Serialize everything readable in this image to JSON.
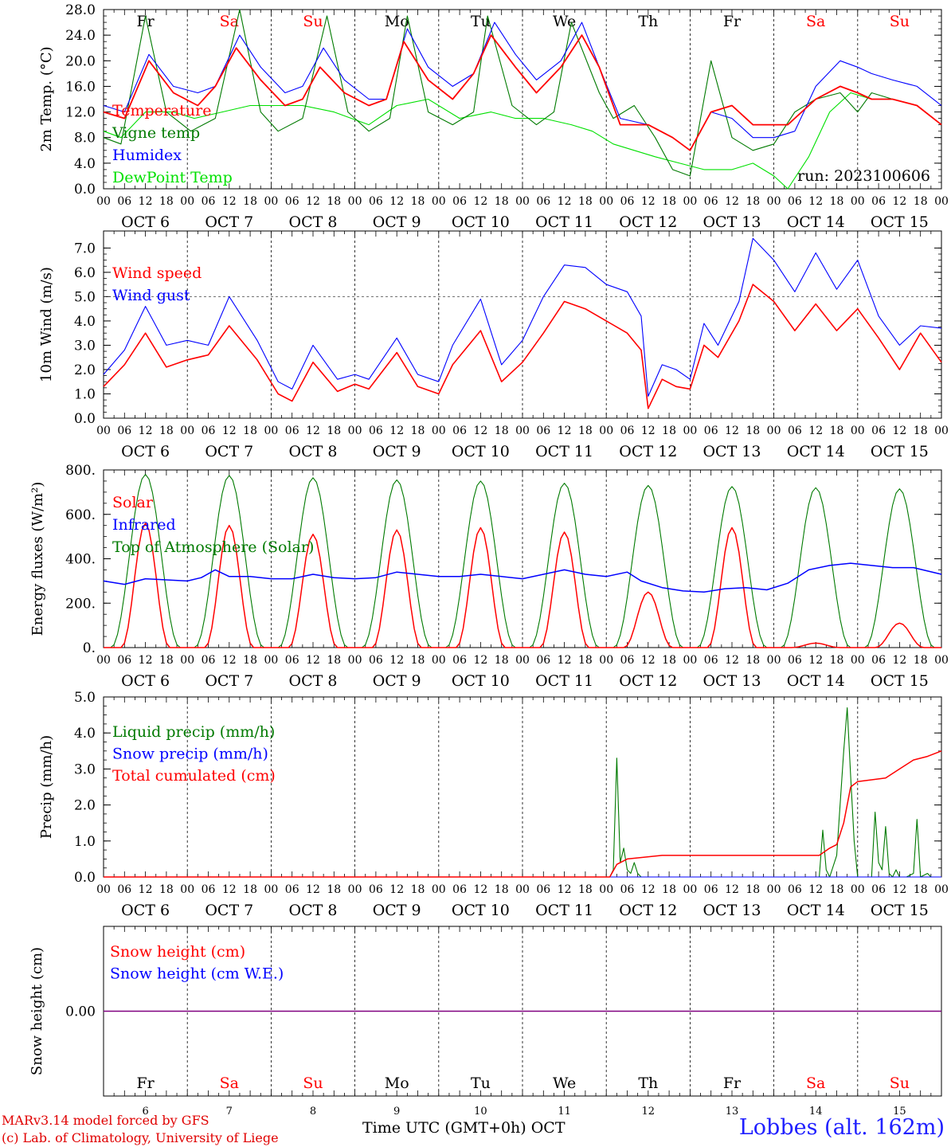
{
  "days": {
    "dow": [
      "Fr",
      "Sa",
      "Su",
      "Mo",
      "Tu",
      "We",
      "Th",
      "Fr",
      "Sa",
      "Su"
    ],
    "dom": [
      "6",
      "7",
      "8",
      "9",
      "10",
      "11",
      "12",
      "13",
      "14",
      "15"
    ],
    "month": "OCT",
    "dates": [
      "OCT  6",
      "OCT  7",
      "OCT  8",
      "OCT  9",
      "OCT 10",
      "OCT 11",
      "OCT 12",
      "OCT 13",
      "OCT 14",
      "OCT 15"
    ],
    "weekend_days": [
      "Sa",
      "Su"
    ],
    "hour_labels": [
      "00",
      "06",
      "12",
      "18"
    ],
    "final_hour_label": "00"
  },
  "colors": {
    "red": "#ff0000",
    "blue": "#0000ff",
    "green": "#007a00",
    "lightgreen": "#00e000",
    "purple": "#800080",
    "station": "#2020ff"
  },
  "footer": {
    "model": "MARv3.14 model forced by GFS",
    "lab": "(c) Lab. of Climatology, University of Liege",
    "time_label": "Time UTC (GMT+0h) OCT",
    "station": "Lobbes (alt. 162m)"
  },
  "chart_data": [
    {
      "type": "line",
      "ylabel": "2m Temp. (°C)",
      "ylim": [
        0,
        28
      ],
      "yticks": [
        "0.0",
        "4.0",
        "8.0",
        "12.0",
        "16.0",
        "20.0",
        "24.0",
        "28.0"
      ],
      "annotation": "run: 2023100606",
      "x_unit": "hours from Oct 6 00 UTC",
      "series": [
        {
          "name": "Temperature",
          "color": "red",
          "x": [
            0,
            6,
            13,
            20,
            27,
            32,
            38,
            45,
            52,
            57,
            62,
            69,
            76,
            81,
            86,
            93,
            100,
            106,
            111,
            118,
            124,
            131,
            137,
            142,
            148,
            156,
            163,
            168,
            174,
            180,
            186,
            190,
            196,
            204,
            211,
            216,
            220,
            226,
            233,
            240
          ],
          "y": [
            12,
            11,
            20,
            15,
            13,
            16,
            22,
            17,
            13,
            14,
            19,
            15,
            13,
            14,
            23,
            17,
            14,
            18,
            24,
            19,
            15,
            19,
            24,
            19,
            10,
            10,
            8,
            6,
            12,
            13,
            10,
            10,
            10,
            14,
            16,
            15,
            14,
            14,
            13,
            10
          ]
        },
        {
          "name": "Vigne temp",
          "color": "green",
          "x": [
            0,
            5,
            12,
            18,
            25,
            32,
            39,
            45,
            50,
            57,
            64,
            70,
            76,
            82,
            87,
            93,
            100,
            106,
            110,
            117,
            124,
            129,
            134,
            142,
            146,
            152,
            158,
            163,
            168,
            174,
            180,
            186,
            192,
            198,
            204,
            211,
            216,
            220,
            226,
            233,
            240
          ],
          "y": [
            8,
            7,
            27,
            12,
            9,
            11,
            28,
            12,
            9,
            11,
            27,
            12,
            9,
            11,
            27,
            12,
            10,
            12,
            27,
            13,
            10,
            12,
            26,
            15,
            11,
            13,
            8,
            3,
            2,
            20,
            8,
            6,
            7,
            12,
            14,
            15,
            12,
            15,
            14,
            13,
            10
          ]
        },
        {
          "name": "Humidex",
          "color": "blue",
          "x": [
            0,
            6,
            13,
            20,
            27,
            32,
            39,
            45,
            52,
            57,
            63,
            69,
            76,
            81,
            87,
            93,
            100,
            106,
            112,
            118,
            124,
            131,
            137,
            142,
            148,
            156,
            163,
            168,
            174,
            180,
            186,
            192,
            198,
            204,
            211,
            216,
            220,
            226,
            233,
            240
          ],
          "y": [
            13,
            12,
            21,
            16,
            15,
            16,
            24,
            19,
            15,
            16,
            22,
            17,
            14,
            14,
            25,
            19,
            16,
            18,
            26,
            21,
            17,
            20,
            26,
            19,
            11,
            10,
            8,
            6,
            12,
            11,
            8,
            8,
            9,
            16,
            20,
            19,
            18,
            17,
            16,
            13
          ]
        },
        {
          "name": "DewPoint Temp",
          "color": "lightgreen",
          "x": [
            0,
            5,
            12,
            20,
            26,
            34,
            42,
            50,
            57,
            66,
            76,
            84,
            93,
            102,
            111,
            118,
            126,
            134,
            140,
            146,
            152,
            158,
            165,
            172,
            180,
            186,
            192,
            196,
            202,
            208,
            214,
            220,
            226,
            233,
            240
          ],
          "y": [
            9,
            8,
            12,
            12,
            11,
            12,
            13,
            13,
            13,
            12,
            10,
            13,
            14,
            11,
            12,
            11,
            11,
            10,
            9,
            7,
            6,
            5,
            4,
            3,
            3,
            4,
            2,
            0,
            5,
            12,
            15,
            14,
            14,
            13,
            10
          ]
        }
      ]
    },
    {
      "type": "line",
      "ylabel": "10m Wind (m/s)",
      "ylim": [
        0,
        7.7
      ],
      "yticks": [
        "0.0",
        "1.0",
        "2.0",
        "3.0",
        "4.0",
        "5.0",
        "6.0",
        "7.0"
      ],
      "reference_line": 5.0,
      "series": [
        {
          "name": "Wind speed",
          "color": "red",
          "x": [
            0,
            6,
            12,
            18,
            24,
            30,
            36,
            44,
            50,
            54,
            60,
            67,
            72,
            76,
            84,
            90,
            96,
            100,
            108,
            114,
            120,
            126,
            132,
            138,
            144,
            150,
            154,
            156,
            160,
            164,
            168,
            172,
            176,
            182,
            186,
            192,
            198,
            204,
            210,
            216,
            222,
            228,
            234,
            240
          ],
          "y": [
            1.3,
            2.2,
            3.5,
            2.1,
            2.4,
            2.6,
            3.8,
            2.4,
            1.0,
            0.7,
            2.3,
            1.1,
            1.4,
            1.2,
            2.7,
            1.3,
            1.0,
            2.2,
            3.6,
            1.5,
            2.3,
            3.5,
            4.8,
            4.5,
            4.0,
            3.5,
            2.8,
            0.4,
            1.6,
            1.3,
            1.2,
            3.0,
            2.5,
            4.0,
            5.5,
            4.8,
            3.6,
            4.7,
            3.6,
            4.5,
            3.3,
            2.0,
            3.5,
            2.3
          ]
        },
        {
          "name": "Wind gust",
          "color": "blue",
          "x": [
            0,
            6,
            12,
            18,
            24,
            30,
            36,
            44,
            50,
            54,
            60,
            67,
            72,
            76,
            84,
            90,
            96,
            100,
            108,
            114,
            120,
            126,
            132,
            138,
            144,
            150,
            154,
            156,
            160,
            164,
            168,
            172,
            176,
            182,
            186,
            192,
            198,
            204,
            210,
            216,
            222,
            228,
            234,
            240
          ],
          "y": [
            1.8,
            2.8,
            4.6,
            3.0,
            3.2,
            3.0,
            5.0,
            3.2,
            1.5,
            1.2,
            3.0,
            1.6,
            1.8,
            1.6,
            3.3,
            1.8,
            1.5,
            3.0,
            4.9,
            2.2,
            3.2,
            5.0,
            6.3,
            6.2,
            5.5,
            5.2,
            4.2,
            0.9,
            2.2,
            2.0,
            1.6,
            3.9,
            3.0,
            4.8,
            7.4,
            6.5,
            5.2,
            6.8,
            5.3,
            6.5,
            4.2,
            3.0,
            3.8,
            3.7
          ]
        }
      ]
    },
    {
      "type": "line",
      "ylabel": "Energy fluxes (W/m²)",
      "ylim": [
        0,
        800
      ],
      "yticks": [
        "0.",
        "200.",
        "400.",
        "600.",
        "800."
      ],
      "series": [
        {
          "name": "Solar",
          "color": "red",
          "diurnal_peaks": [
            560,
            550,
            510,
            530,
            540,
            520,
            250,
            540,
            20,
            110
          ]
        },
        {
          "name": "Infrared",
          "color": "blue",
          "x": [
            0,
            6,
            12,
            18,
            24,
            28,
            32,
            36,
            42,
            48,
            54,
            60,
            66,
            72,
            78,
            84,
            90,
            96,
            102,
            108,
            114,
            120,
            126,
            132,
            138,
            144,
            150,
            154,
            160,
            166,
            172,
            178,
            184,
            190,
            196,
            202,
            208,
            214,
            220,
            226,
            232,
            240
          ],
          "y": [
            300,
            285,
            310,
            305,
            300,
            315,
            350,
            320,
            320,
            310,
            310,
            330,
            315,
            310,
            315,
            340,
            330,
            320,
            320,
            330,
            320,
            310,
            330,
            350,
            330,
            320,
            340,
            300,
            270,
            255,
            250,
            265,
            270,
            260,
            290,
            350,
            370,
            380,
            370,
            360,
            360,
            330
          ]
        },
        {
          "name": "Top of Atmosphere (Solar)",
          "color": "green",
          "diurnal_peaks": [
            780,
            775,
            765,
            755,
            750,
            740,
            730,
            725,
            720,
            715
          ]
        }
      ]
    },
    {
      "type": "line",
      "ylabel": "Precip (mm/h)",
      "ylim": [
        0,
        5.0
      ],
      "yticks": [
        "0.0",
        "1.0",
        "2.0",
        "3.0",
        "4.0",
        "5.0"
      ],
      "series": [
        {
          "name": "Liquid precip (mm/h)",
          "color": "green",
          "x": [
            0,
            145,
            146,
            147,
            148,
            149,
            150,
            151,
            152,
            153,
            154,
            156,
            205,
            206,
            207,
            208,
            210,
            212,
            213,
            214,
            215,
            216,
            218,
            220,
            221,
            222,
            223,
            224,
            225,
            226,
            227,
            228,
            230,
            232,
            233,
            234,
            236,
            237,
            238,
            240
          ],
          "y": [
            0,
            0,
            0.2,
            3.3,
            0.4,
            0.8,
            0.2,
            0.1,
            0.4,
            0.1,
            0,
            0,
            0,
            1.3,
            0.2,
            0,
            0.6,
            3.5,
            4.7,
            2.8,
            1.0,
            0,
            0,
            0,
            1.8,
            0.4,
            0.2,
            1.4,
            0.1,
            0,
            0.2,
            0,
            0,
            0.1,
            1.6,
            0,
            0.1,
            0,
            0,
            0
          ]
        },
        {
          "name": "Snow precip (mm/h)",
          "color": "blue",
          "x": [
            0,
            240
          ],
          "y": [
            0,
            0
          ]
        },
        {
          "name": "Total cumulated (cm)",
          "color": "red",
          "x": [
            0,
            145,
            147,
            150,
            155,
            160,
            200,
            205,
            208,
            210,
            212,
            214,
            216,
            220,
            224,
            228,
            232,
            236,
            240
          ],
          "y": [
            0,
            0,
            0.35,
            0.5,
            0.55,
            0.6,
            0.6,
            0.6,
            0.8,
            0.9,
            1.5,
            2.5,
            2.65,
            2.7,
            2.75,
            3.0,
            3.25,
            3.35,
            3.5
          ]
        }
      ]
    },
    {
      "type": "line",
      "ylabel": "Snow height (cm)",
      "yticks": [
        "0.00"
      ],
      "series": [
        {
          "name": "Snow height (cm)",
          "color": "red",
          "x": [
            0,
            240
          ],
          "y": [
            0,
            0
          ]
        },
        {
          "name": "Snow height (cm W.E.)",
          "color": "blue",
          "x": [
            0,
            240
          ],
          "y": [
            0,
            0
          ]
        }
      ]
    }
  ]
}
